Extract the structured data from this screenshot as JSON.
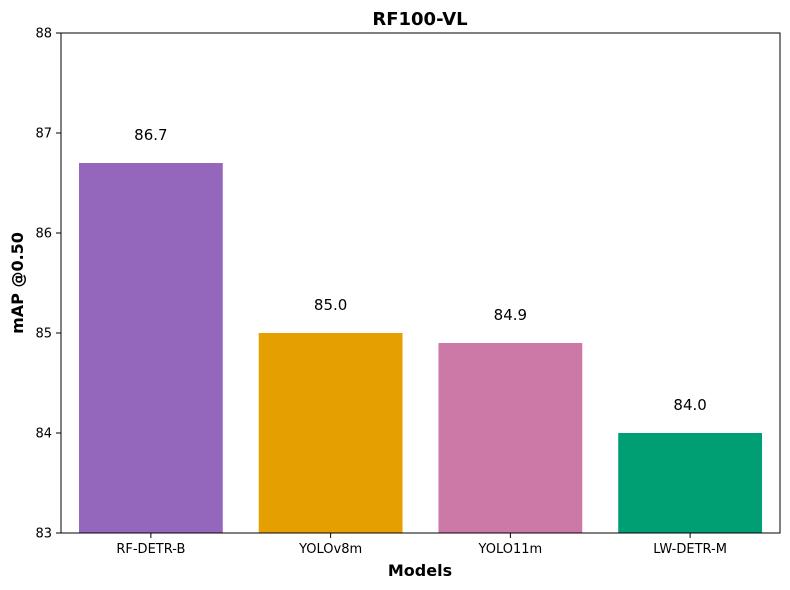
{
  "chart_data": {
    "type": "bar",
    "title": "RF100-VL",
    "xlabel": "Models",
    "ylabel": "mAP @0.50",
    "categories": [
      "RF-DETR-B",
      "YOLOv8m",
      "YOLO11m",
      "LW-DETR-M"
    ],
    "values": [
      86.7,
      85.0,
      84.9,
      84.0
    ],
    "data_labels": [
      "86.7",
      "85.0",
      "84.9",
      "84.0"
    ],
    "colors": [
      "#9467bd",
      "#e69f00",
      "#cc79a7",
      "#009e73"
    ],
    "ylim": [
      83,
      88
    ],
    "yticks": [
      83,
      84,
      85,
      86,
      87,
      88
    ],
    "ytick_labels": [
      "83",
      "84",
      "85",
      "86",
      "87",
      "88"
    ],
    "grid": false,
    "legend": "none"
  }
}
